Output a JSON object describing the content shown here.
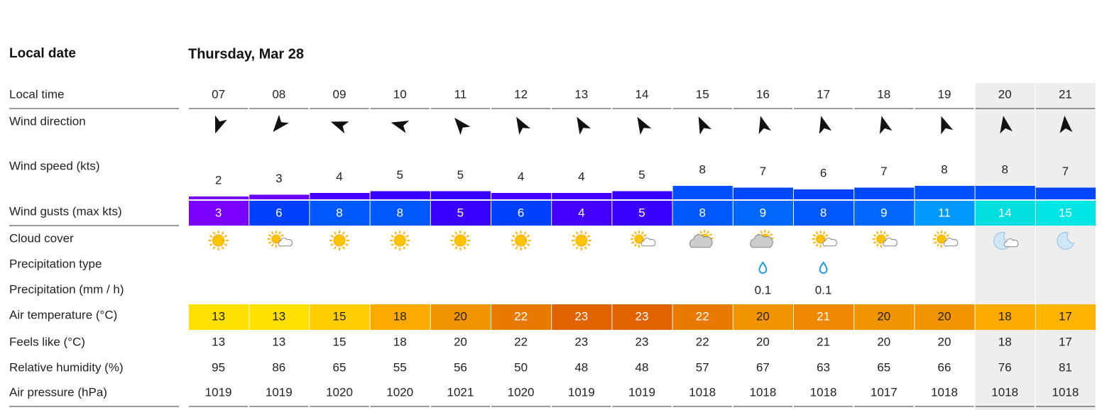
{
  "header": {
    "date_label": "Local date",
    "date": "Thursday, Mar 28"
  },
  "row_labels": [
    "Local time",
    "Wind direction",
    "Wind speed (kts)",
    "Wind gusts (max kts)",
    "Cloud cover",
    "Precipitation type",
    "Precipitation (mm / h)",
    "Air temperature (°C)",
    "Feels like (°C)",
    "Relative humidity (%)",
    "Air pressure (hPa)"
  ],
  "hours": [
    "07",
    "08",
    "09",
    "10",
    "11",
    "12",
    "13",
    "14",
    "15",
    "16",
    "17",
    "18",
    "19",
    "20",
    "21"
  ],
  "wind_direction_deg": [
    200,
    220,
    290,
    285,
    320,
    330,
    330,
    330,
    335,
    345,
    345,
    345,
    340,
    350,
    355
  ],
  "wind_speed": [
    2,
    3,
    4,
    5,
    5,
    4,
    4,
    5,
    8,
    7,
    6,
    7,
    8,
    8,
    7
  ],
  "wind_speed_colors": [
    "#7a00ff",
    "#6a00ff",
    "#4400ff",
    "#3a00ff",
    "#3a00ff",
    "#4400ff",
    "#4400ff",
    "#3a00ff",
    "#0050ff",
    "#0048ff",
    "#0040ff",
    "#0048ff",
    "#0050ff",
    "#0050ff",
    "#0048ff"
  ],
  "wind_gusts": [
    3,
    6,
    8,
    8,
    5,
    6,
    4,
    5,
    8,
    9,
    8,
    9,
    11,
    14,
    15
  ],
  "wind_gust_colors": [
    "#7a00ff",
    "#0040ff",
    "#0058ff",
    "#0058ff",
    "#3a00ff",
    "#0040ff",
    "#4400ff",
    "#3a00ff",
    "#0058ff",
    "#0068ff",
    "#0058ff",
    "#0068ff",
    "#0099ff",
    "#00dede",
    "#00e6e6"
  ],
  "precipitation": [
    null,
    null,
    null,
    null,
    null,
    null,
    null,
    null,
    null,
    0.1,
    0.1,
    null,
    null,
    null,
    null
  ],
  "air_temperature": [
    13,
    13,
    15,
    18,
    20,
    22,
    23,
    23,
    22,
    20,
    21,
    20,
    20,
    18,
    17
  ],
  "air_temperature_colors": [
    "#ffe000",
    "#ffe000",
    "#ffcc00",
    "#ffaa00",
    "#f29400",
    "#e87a00",
    "#e06200",
    "#e06200",
    "#e87a00",
    "#f29400",
    "#ee8800",
    "#f29400",
    "#f29400",
    "#ffaa00",
    "#ffb400"
  ],
  "air_temperature_text_colors": [
    "#222",
    "#222",
    "#222",
    "#222",
    "#222",
    "#fff",
    "#fff",
    "#fff",
    "#fff",
    "#222",
    "#fff",
    "#222",
    "#222",
    "#222",
    "#222"
  ],
  "feels_like": [
    13,
    13,
    15,
    18,
    20,
    22,
    23,
    23,
    22,
    20,
    21,
    20,
    20,
    18,
    17
  ],
  "relative_humidity": [
    95,
    86,
    65,
    55,
    56,
    50,
    48,
    48,
    57,
    67,
    63,
    65,
    66,
    76,
    81
  ],
  "air_pressure": [
    1019,
    1019,
    1020,
    1020,
    1021,
    1020,
    1019,
    1019,
    1018,
    1018,
    1018,
    1017,
    1018,
    1018,
    1018
  ]
}
